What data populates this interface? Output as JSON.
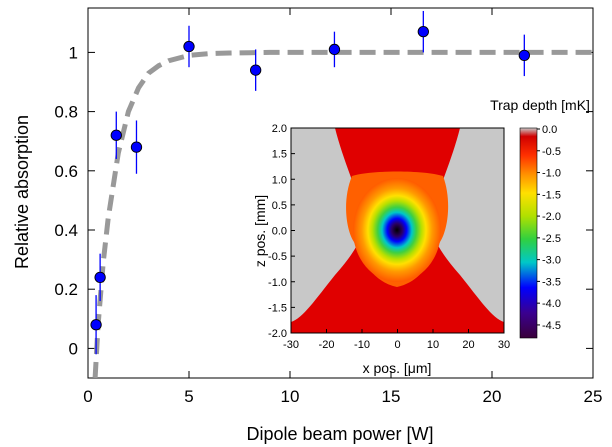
{
  "chart_data": [
    {
      "type": "scatter",
      "xlabel": "Dipole beam power [W]",
      "ylabel": "Relative absorption",
      "xlim": [
        0,
        25
      ],
      "ylim": [
        -0.1,
        1.15
      ],
      "xticks": [
        0,
        5,
        10,
        15,
        20,
        25
      ],
      "yticks": [
        0,
        0.2,
        0.4,
        0.6,
        0.8,
        1
      ],
      "grid": false,
      "series": [
        {
          "values_x": [
            0.4,
            0.6,
            1.4,
            2.4,
            5.0,
            8.3,
            12.2,
            16.6,
            21.6
          ],
          "values_y": [
            0.08,
            0.24,
            0.72,
            0.68,
            1.02,
            0.94,
            1.01,
            1.07,
            0.99
          ],
          "errors": [
            0.1,
            0.08,
            0.08,
            0.09,
            0.07,
            0.07,
            0.06,
            0.07,
            0.07
          ],
          "color": "#0000ff"
        }
      ],
      "fit": {
        "style": "dashed",
        "color": "#999999",
        "x": [
          0.35,
          0.5,
          0.75,
          1,
          1.5,
          2,
          2.5,
          3,
          3.5,
          4,
          5,
          6,
          7,
          8,
          9,
          10,
          12,
          15,
          20,
          25
        ],
        "y": [
          -0.1,
          0.08,
          0.29,
          0.44,
          0.66,
          0.8,
          0.88,
          0.93,
          0.955,
          0.972,
          0.99,
          0.996,
          0.998,
          0.999,
          1.0,
          1.0,
          1.0,
          1.0,
          1.0,
          1.0
        ]
      }
    },
    {
      "type": "heatmap",
      "xlabel": "x pos. [μm]",
      "ylabel": "z pos. [mm]",
      "xlim": [
        -30,
        30
      ],
      "ylim": [
        -2.0,
        2.0
      ],
      "xticks": [
        "-30",
        "-20",
        "-10",
        "0",
        "10",
        "20",
        "30"
      ],
      "yticks": [
        "2.0",
        "1.5",
        "1.0",
        "0.5",
        "0.0",
        "-0.5",
        "-1.0",
        "-1.5",
        "-2.0"
      ],
      "colorbar": {
        "title": "Trap depth [mK]",
        "ticks": [
          "0.0",
          "-0.5",
          "-1.0",
          "-1.5",
          "-2.0",
          "-2.5",
          "-3.0",
          "-3.5",
          "-4.0",
          "-4.5"
        ],
        "range": [
          -4.8,
          0.0
        ],
        "colors": [
          "#c8c8c8",
          "#e00000",
          "#ff8c00",
          "#ffe000",
          "#40d040",
          "#00c8c8",
          "#0000ff",
          "#1a0080",
          "#3a003a"
        ]
      }
    }
  ]
}
